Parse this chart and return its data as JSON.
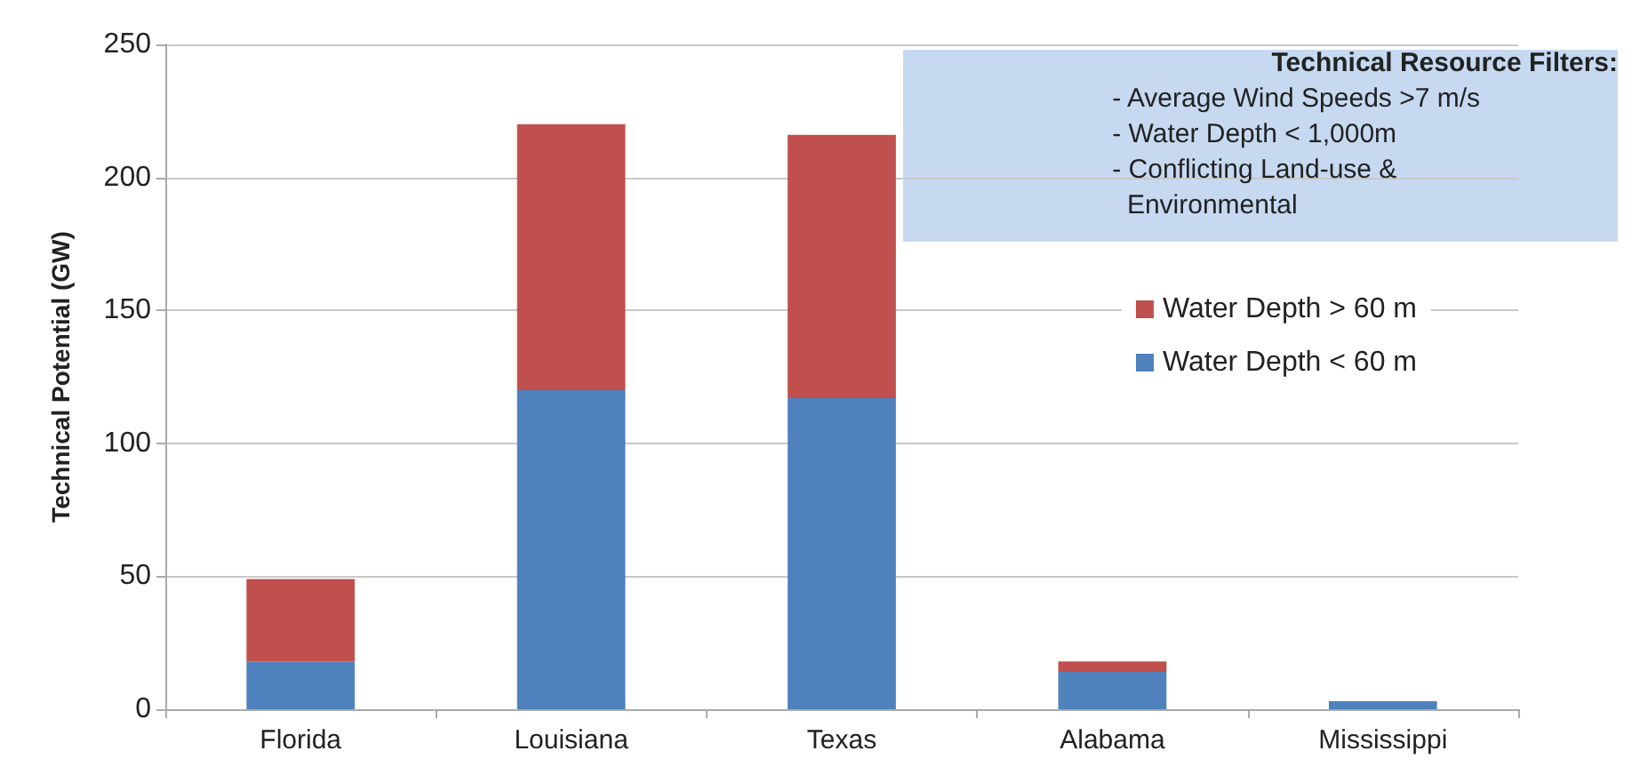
{
  "chart_data": {
    "type": "bar",
    "stacked": true,
    "ylabel": "Technical Potential (GW)",
    "categories": [
      "Florida",
      "Louisiana",
      "Texas",
      "Alabama",
      "Mississippi"
    ],
    "series": [
      {
        "name": "Water Depth < 60 m",
        "color": "#4f81bd",
        "values": [
          18,
          120,
          117,
          14,
          3
        ]
      },
      {
        "name": "Water Depth > 60 m",
        "color": "#c0504d",
        "values": [
          31,
          100,
          99,
          4,
          0
        ]
      }
    ],
    "ylim": [
      0,
      250
    ],
    "yticks": [
      0,
      50,
      100,
      150,
      200,
      250
    ],
    "grid": "y",
    "legend": "right",
    "annotations": [
      "Technical Resource Filters:",
      "- Average Wind Speeds >7 m/s",
      "- Water Depth < 1,000m",
      "- Conflicting Land-use &",
      "  Environmental"
    ]
  }
}
